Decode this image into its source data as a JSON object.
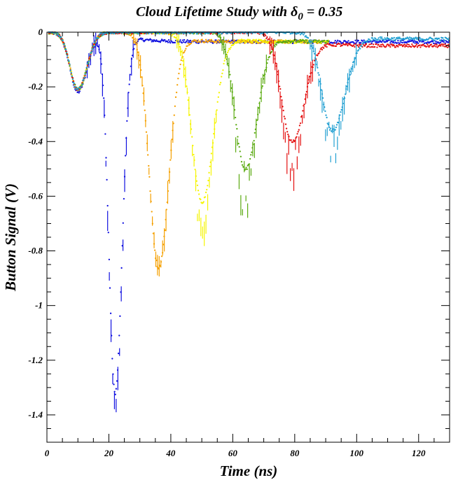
{
  "chart_data": {
    "type": "scatter",
    "title": "Cloud Lifetime Study with δ",
    "title_parts": {
      "delta": "δ",
      "subscript": "0",
      "suffix": " = 0.35"
    },
    "xlabel": "Time (ns)",
    "ylabel": "Button Signal (V)",
    "xlim": [
      0,
      130
    ],
    "ylim": [
      -1.5,
      0
    ],
    "x_ticks": [
      0,
      20,
      40,
      60,
      80,
      100,
      120
    ],
    "x_tick_labels": [
      "0",
      "20",
      "40",
      "60",
      "80",
      "100",
      "120"
    ],
    "y_ticks": [
      0,
      -0.2,
      -0.4,
      -0.6,
      -0.8,
      -1,
      -1.2,
      -1.4
    ],
    "y_tick_labels": [
      "0",
      "-0.2",
      "-0.4",
      "-0.6",
      "-0.8",
      "-1",
      "-1.2",
      "-1.4"
    ],
    "grid": false,
    "legend": "none",
    "series": [
      {
        "color": "#1010e0",
        "pulses": [
          {
            "t0": 10,
            "depth": 0.22,
            "w_fall": 3.6,
            "w_rise": 4.2
          },
          {
            "t0": 22,
            "depth": 1.32,
            "w_fall": 2.8,
            "w_rise": 3.2
          }
        ],
        "x_end": 130,
        "tail": -0.035,
        "err_from": 13,
        "err_to": 28,
        "peak_min": -1.46
      },
      {
        "color": "#f5a000",
        "pulses": [
          {
            "t0": 10,
            "depth": 0.21,
            "w_fall": 3.6,
            "w_rise": 4.2
          },
          {
            "t0": 36,
            "depth": 0.86,
            "w_fall": 4.2,
            "w_rise": 4.8
          }
        ],
        "x_end": 91,
        "tail": -0.035,
        "err_from": 28,
        "err_to": 41,
        "peak_min": -0.86
      },
      {
        "color": "#f5f500",
        "pulses": [
          {
            "t0": 10,
            "depth": 0.21,
            "w_fall": 3.6,
            "w_rise": 4.2
          },
          {
            "t0": 50,
            "depth": 0.62,
            "w_fall": 4.6,
            "w_rise": 5.2
          }
        ],
        "x_end": 91,
        "tail": -0.035,
        "err_from": 42,
        "err_to": 55,
        "peak_min": -0.8
      },
      {
        "color": "#5aaa10",
        "pulses": [
          {
            "t0": 10,
            "depth": 0.21,
            "w_fall": 3.6,
            "w_rise": 4.2
          },
          {
            "t0": 64,
            "depth": 0.5,
            "w_fall": 4.6,
            "w_rise": 5.4
          }
        ],
        "x_end": 91,
        "tail": -0.035,
        "err_from": 56,
        "err_to": 71,
        "peak_min": -0.73
      },
      {
        "color": "#e41010",
        "pulses": [
          {
            "t0": 10,
            "depth": 0.21,
            "w_fall": 3.6,
            "w_rise": 4.2
          },
          {
            "t0": 79,
            "depth": 0.4,
            "w_fall": 4.6,
            "w_rise": 5.6
          }
        ],
        "x_end": 130,
        "tail": -0.05,
        "err_from": 72,
        "err_to": 86,
        "peak_min": -0.55
      },
      {
        "color": "#22a0d2",
        "pulses": [
          {
            "t0": 10,
            "depth": 0.21,
            "w_fall": 3.6,
            "w_rise": 4.2
          },
          {
            "t0": 92,
            "depth": 0.36,
            "w_fall": 4.6,
            "w_rise": 6.0
          }
        ],
        "x_end": 130,
        "tail": -0.025,
        "err_from": 85,
        "err_to": 100,
        "peak_min": -0.48
      }
    ]
  }
}
